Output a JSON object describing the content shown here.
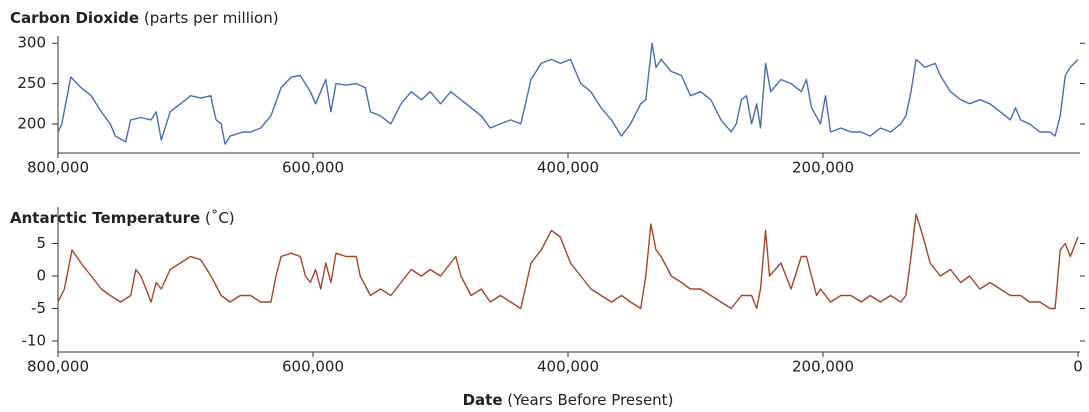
{
  "chart_data": [
    {
      "type": "line",
      "title": "Carbon Dioxide",
      "title_unit": "(parts per million)",
      "color": "#4a6db3",
      "x": [
        800000,
        797000,
        790000,
        782000,
        774000,
        766000,
        759000,
        755000,
        747000,
        743000,
        735000,
        727000,
        723000,
        719000,
        712000,
        704000,
        696000,
        688000,
        680000,
        679000,
        676000,
        672000,
        669000,
        665000,
        655000,
        649000,
        641000,
        633000,
        625000,
        617000,
        610000,
        602000,
        598000,
        594000,
        590000,
        586000,
        582000,
        574000,
        566000,
        559000,
        555000,
        547000,
        539000,
        531000,
        523000,
        515000,
        508000,
        500000,
        492000,
        484000,
        476000,
        468000,
        461000,
        453000,
        445000,
        437000,
        429000,
        421000,
        413000,
        406000,
        398000,
        394000,
        390000,
        382000,
        374000,
        366000,
        358000,
        351000,
        343000,
        339000,
        334000,
        331000,
        327000,
        319000,
        311000,
        304000,
        296000,
        288000,
        280000,
        272000,
        268000,
        264000,
        260000,
        256000,
        252000,
        249000,
        245000,
        241000,
        233000,
        225000,
        217000,
        213000,
        209000,
        202000,
        198000,
        194000,
        186000,
        178000,
        170000,
        163000,
        155000,
        147000,
        139000,
        135000,
        131000,
        127000,
        120000,
        112000,
        108000,
        100000,
        92000,
        85000,
        77000,
        69000,
        61000,
        53000,
        49000,
        45000,
        38000,
        30000,
        22000,
        18000,
        14000,
        10000,
        6000,
        0
      ],
      "values": [
        190,
        200,
        258,
        245,
        235,
        215,
        200,
        185,
        178,
        205,
        208,
        205,
        215,
        180,
        215,
        225,
        235,
        232,
        235,
        225,
        205,
        200,
        175,
        185,
        190,
        190,
        195,
        210,
        245,
        258,
        260,
        240,
        225,
        240,
        255,
        215,
        250,
        248,
        250,
        245,
        215,
        210,
        200,
        225,
        240,
        230,
        240,
        225,
        240,
        230,
        220,
        210,
        195,
        200,
        205,
        200,
        255,
        275,
        280,
        275,
        280,
        265,
        250,
        240,
        220,
        205,
        185,
        200,
        225,
        230,
        300,
        270,
        280,
        265,
        260,
        235,
        240,
        230,
        205,
        190,
        200,
        230,
        235,
        200,
        225,
        195,
        275,
        240,
        255,
        250,
        240,
        255,
        220,
        200,
        235,
        190,
        195,
        190,
        190,
        185,
        195,
        190,
        200,
        210,
        240,
        280,
        270,
        275,
        260,
        240,
        230,
        225,
        230,
        225,
        215,
        205,
        220,
        205,
        200,
        190,
        190,
        185,
        210,
        260,
        270,
        280
      ],
      "xlim": [
        800000,
        0
      ],
      "ylim": [
        164,
        304
      ],
      "xticks": [
        {
          "value": 800000,
          "label": "800,000"
        },
        {
          "value": 600000,
          "label": "600,000"
        },
        {
          "value": 400000,
          "label": "400,000"
        },
        {
          "value": 200000,
          "label": "200,000"
        }
      ],
      "yticks": [
        200,
        250,
        300
      ]
    },
    {
      "type": "line",
      "title": "Antarctic Temperature",
      "title_unit": "(˚C)",
      "color": "#a4452a",
      "x_label": "Date",
      "x_label_unit": "(Years Before Present)",
      "x": [
        800000,
        795000,
        789000,
        782000,
        774000,
        766000,
        759000,
        751000,
        743000,
        739000,
        735000,
        731000,
        727000,
        723000,
        719000,
        712000,
        704000,
        696000,
        688000,
        680000,
        672000,
        665000,
        657000,
        649000,
        641000,
        633000,
        629000,
        625000,
        617000,
        610000,
        606000,
        602000,
        598000,
        594000,
        590000,
        586000,
        582000,
        574000,
        566000,
        563000,
        555000,
        547000,
        539000,
        531000,
        523000,
        515000,
        508000,
        500000,
        492000,
        488000,
        484000,
        476000,
        468000,
        461000,
        453000,
        445000,
        437000,
        429000,
        421000,
        413000,
        406000,
        398000,
        390000,
        382000,
        374000,
        366000,
        358000,
        351000,
        343000,
        339000,
        335000,
        331000,
        327000,
        319000,
        311000,
        304000,
        296000,
        288000,
        280000,
        272000,
        264000,
        256000,
        252000,
        249000,
        245000,
        242000,
        233000,
        225000,
        217000,
        213000,
        209000,
        205000,
        202000,
        194000,
        186000,
        178000,
        170000,
        163000,
        155000,
        147000,
        139000,
        135000,
        131000,
        127000,
        123000,
        120000,
        116000,
        108000,
        100000,
        92000,
        85000,
        77000,
        69000,
        61000,
        53000,
        45000,
        38000,
        30000,
        22000,
        18000,
        14000,
        10000,
        6000,
        0
      ],
      "values": [
        -4,
        -2,
        4,
        2,
        0,
        -2,
        -3,
        -4,
        -3,
        1,
        0,
        -2,
        -4,
        -1,
        -2,
        1,
        2,
        3,
        2.5,
        0,
        -3,
        -4,
        -3,
        -3,
        -4,
        -4,
        0,
        3,
        3.5,
        3,
        0,
        -1,
        1,
        -2,
        2,
        -1,
        3.5,
        3,
        3,
        0,
        -3,
        -2,
        -3,
        -1,
        1,
        0,
        1,
        0,
        2,
        3,
        0,
        -3,
        -2,
        -4,
        -3,
        -4,
        -5,
        2,
        4,
        7,
        6,
        2,
        0,
        -2,
        -3,
        -4,
        -3,
        -4,
        -5,
        0,
        8,
        4,
        3,
        0,
        -1,
        -2,
        -2,
        -3,
        -4,
        -5,
        -3,
        -3,
        -5,
        -2,
        7,
        0,
        2,
        -2,
        3,
        3,
        0,
        -3,
        -2,
        -4,
        -3,
        -3,
        -4,
        -3,
        -4,
        -3,
        -4,
        -3,
        3,
        9.5,
        7,
        5,
        2,
        0,
        1,
        -1,
        0,
        -2,
        -1,
        -2,
        -3,
        -3,
        -4,
        -4,
        -5,
        -5,
        4,
        5,
        3,
        6
      ],
      "xlim": [
        800000,
        0
      ],
      "ylim": [
        -11.7,
        10
      ],
      "xticks": [
        {
          "value": 800000,
          "label": "800,000"
        },
        {
          "value": 600000,
          "label": "600,000"
        },
        {
          "value": 400000,
          "label": "400,000"
        },
        {
          "value": 200000,
          "label": "200,000"
        },
        0
      ],
      "yticks": [
        5,
        0,
        -5,
        -10
      ]
    }
  ]
}
